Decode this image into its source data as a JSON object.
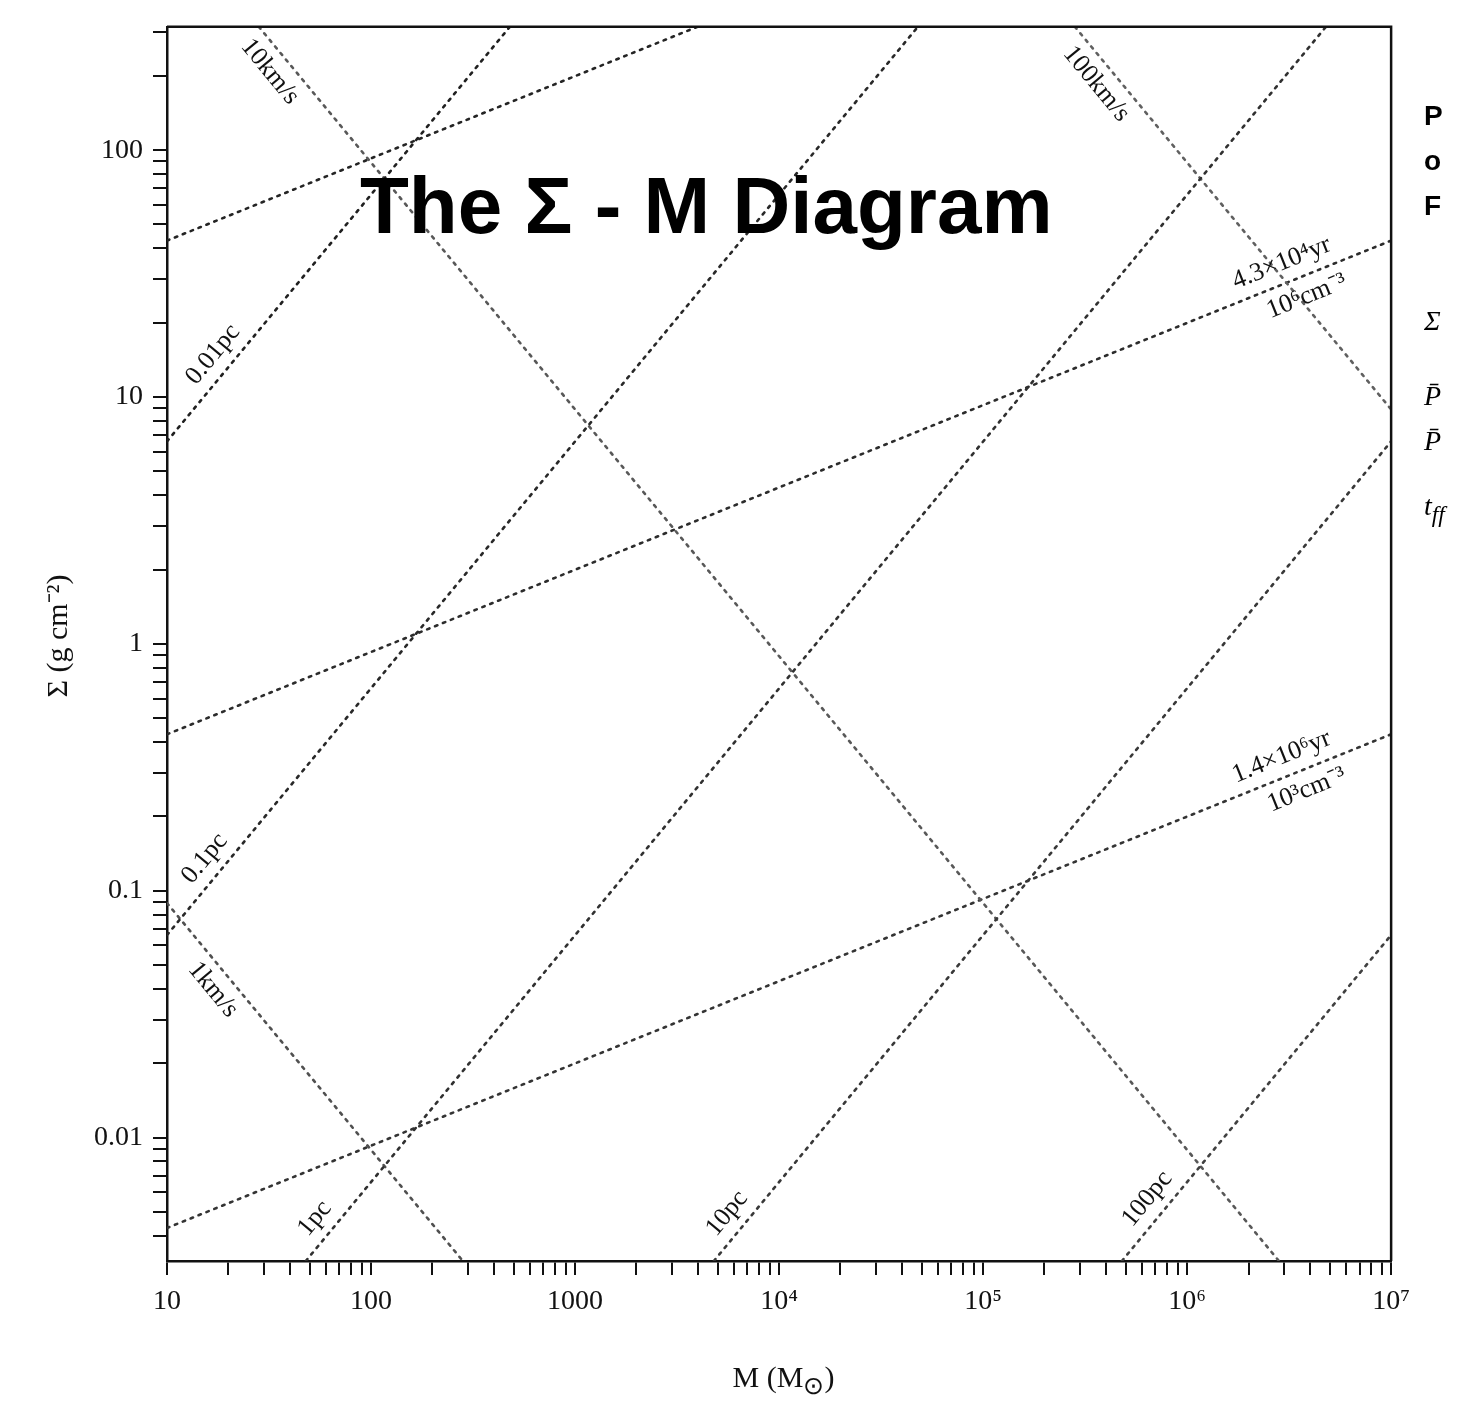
{
  "chart_data": {
    "type": "line",
    "title": "The Σ - M Diagram",
    "xlabel": "M (M$_{⊙}$)",
    "ylabel": "Σ (g cm⁻²)",
    "log": "xy",
    "grid": false,
    "legend": false,
    "marker": "none",
    "line_style": "dotted",
    "xlim": [
      10,
      10000000
    ],
    "ylim": [
      0.00316,
      316
    ],
    "xticks": [
      10,
      {
        "value": 20,
        "label": null
      },
      {
        "value": 30,
        "label": null
      },
      {
        "value": 40,
        "label": null
      },
      {
        "value": 50,
        "label": null
      },
      {
        "value": 60,
        "label": null
      },
      {
        "value": 70,
        "label": null
      },
      {
        "value": 80,
        "label": null
      },
      {
        "value": 90,
        "label": null
      },
      100,
      {
        "value": 200,
        "label": null
      },
      {
        "value": 300,
        "label": null
      },
      {
        "value": 400,
        "label": null
      },
      {
        "value": 500,
        "label": null
      },
      {
        "value": 600,
        "label": null
      },
      {
        "value": 700,
        "label": null
      },
      {
        "value": 800,
        "label": null
      },
      {
        "value": 900,
        "label": null
      },
      1000,
      {
        "value": 2000,
        "label": null
      },
      {
        "value": 3000,
        "label": null
      },
      {
        "value": 4000,
        "label": null
      },
      {
        "value": 5000,
        "label": null
      },
      {
        "value": 6000,
        "label": null
      },
      {
        "value": 7000,
        "label": null
      },
      {
        "value": 8000,
        "label": null
      },
      {
        "value": 9000,
        "label": null
      },
      {
        "value": 10000,
        "label": "10⁴"
      },
      {
        "value": 20000,
        "label": null
      },
      {
        "value": 30000,
        "label": null
      },
      {
        "value": 40000,
        "label": null
      },
      {
        "value": 50000,
        "label": null
      },
      {
        "value": 60000,
        "label": null
      },
      {
        "value": 70000,
        "label": null
      },
      {
        "value": 80000,
        "label": null
      },
      {
        "value": 90000,
        "label": null
      },
      {
        "value": 100000,
        "label": "10⁵"
      },
      {
        "value": 200000,
        "label": null
      },
      {
        "value": 300000,
        "label": null
      },
      {
        "value": 400000,
        "label": null
      },
      {
        "value": 500000,
        "label": null
      },
      {
        "value": 600000,
        "label": null
      },
      {
        "value": 700000,
        "label": null
      },
      {
        "value": 800000,
        "label": null
      },
      {
        "value": 900000,
        "label": null
      },
      {
        "value": 1000000,
        "label": "10⁶"
      },
      {
        "value": 2000000,
        "label": null
      },
      {
        "value": 3000000,
        "label": null
      },
      {
        "value": 4000000,
        "label": null
      },
      {
        "value": 5000000,
        "label": null
      },
      {
        "value": 6000000,
        "label": null
      },
      {
        "value": 7000000,
        "label": null
      },
      {
        "value": 8000000,
        "label": null
      },
      {
        "value": 9000000,
        "label": null
      },
      {
        "value": 10000000,
        "label": "10⁷"
      }
    ],
    "yticks": [
      {
        "value": 0.004,
        "label": null
      },
      {
        "value": 0.005,
        "label": null
      },
      {
        "value": 0.006,
        "label": null
      },
      {
        "value": 0.007,
        "label": null
      },
      {
        "value": 0.008,
        "label": null
      },
      {
        "value": 0.009,
        "label": null
      },
      0.01,
      {
        "value": 0.02,
        "label": null
      },
      {
        "value": 0.03,
        "label": null
      },
      {
        "value": 0.04,
        "label": null
      },
      {
        "value": 0.05,
        "label": null
      },
      {
        "value": 0.06,
        "label": null
      },
      {
        "value": 0.07,
        "label": null
      },
      {
        "value": 0.08,
        "label": null
      },
      {
        "value": 0.09,
        "label": null
      },
      0.1,
      {
        "value": 0.2,
        "label": null
      },
      {
        "value": 0.3,
        "label": null
      },
      {
        "value": 0.4,
        "label": null
      },
      {
        "value": 0.5,
        "label": null
      },
      {
        "value": 0.6,
        "label": null
      },
      {
        "value": 0.7,
        "label": null
      },
      {
        "value": 0.8,
        "label": null
      },
      {
        "value": 0.9,
        "label": null
      },
      1,
      {
        "value": 2,
        "label": null
      },
      {
        "value": 3,
        "label": null
      },
      {
        "value": 4,
        "label": null
      },
      {
        "value": 5,
        "label": null
      },
      {
        "value": 6,
        "label": null
      },
      {
        "value": 7,
        "label": null
      },
      {
        "value": 8,
        "label": null
      },
      {
        "value": 9,
        "label": null
      },
      10,
      {
        "value": 20,
        "label": null
      },
      {
        "value": 30,
        "label": null
      },
      {
        "value": 40,
        "label": null
      },
      {
        "value": 50,
        "label": null
      },
      {
        "value": 60,
        "label": null
      },
      {
        "value": 70,
        "label": null
      },
      {
        "value": 80,
        "label": null
      },
      {
        "value": 90,
        "label": null
      },
      100,
      {
        "value": 200,
        "label": null
      },
      {
        "value": 300,
        "label": null
      }
    ],
    "series": [
      {
        "color": "#202020",
        "x": [
          10,
          479
        ],
        "values": [
          6.61,
          316
        ]
      },
      {
        "color": "#282828",
        "x": [
          10,
          47900
        ],
        "values": [
          0.0661,
          316
        ]
      },
      {
        "color": "#303030",
        "x": [
          47.9,
          4790000
        ],
        "values": [
          0.00316,
          316
        ]
      },
      {
        "color": "#383838",
        "x": [
          4790,
          10000000
        ],
        "values": [
          0.00316,
          6.61
        ]
      },
      {
        "color": "#404040",
        "x": [
          479000,
          10000000
        ],
        "values": [
          0.00316,
          0.0661
        ]
      },
      {
        "color": "#505050",
        "x": [
          10,
          282
        ],
        "values": [
          0.0891,
          0.00316
        ]
      },
      {
        "color": "#585858",
        "x": [
          28.2,
          2820000
        ],
        "values": [
          316,
          0.00316
        ]
      },
      {
        "color": "#606060",
        "x": [
          282000,
          10000000
        ],
        "values": [
          316,
          8.91
        ]
      },
      {
        "color": "#242424",
        "x": [
          10,
          3980
        ],
        "values": [
          43,
          316
        ]
      },
      {
        "color": "#2c2c2c",
        "x": [
          10,
          10000000
        ],
        "values": [
          0.43,
          43
        ]
      },
      {
        "color": "#343434",
        "x": [
          10,
          10000000
        ],
        "values": [
          0.0043,
          0.43
        ]
      }
    ],
    "annotations": [
      {
        "text": "10km/s",
        "x": 38,
        "y": 234
      },
      {
        "text": "100km/s",
        "x": 427000,
        "y": 209
      },
      {
        "text": "1km/s",
        "x": 20,
        "y": 0.0447
      },
      {
        "text": "0.01pc",
        "x": 20,
        "y": 13.2
      },
      {
        "text": "0.1pc",
        "x": 18.2,
        "y": 0.12
      },
      {
        "text": "1pc",
        "x": 63.1,
        "y": 0.00417
      },
      {
        "text": "10pc",
        "x": 6610,
        "y": 0.00437
      },
      {
        "text": "100pc",
        "x": 759000,
        "y": 0.00501
      },
      {
        "text": "4.3×10⁴yr",
        "x": 3160000,
        "y": 29.3
      },
      {
        "text": "10⁶cm⁻³",
        "x": 3550000,
        "y": 30.4
      },
      {
        "text": "1.4×10⁶yr",
        "x": 3160000,
        "y": 0.293
      },
      {
        "text": "10³cm⁻³",
        "x": 3550000,
        "y": 0.304
      },
      "P",
      "o",
      "F",
      "Σ",
      "P̄",
      "P̄",
      "t$_{ff}$"
    ]
  }
}
